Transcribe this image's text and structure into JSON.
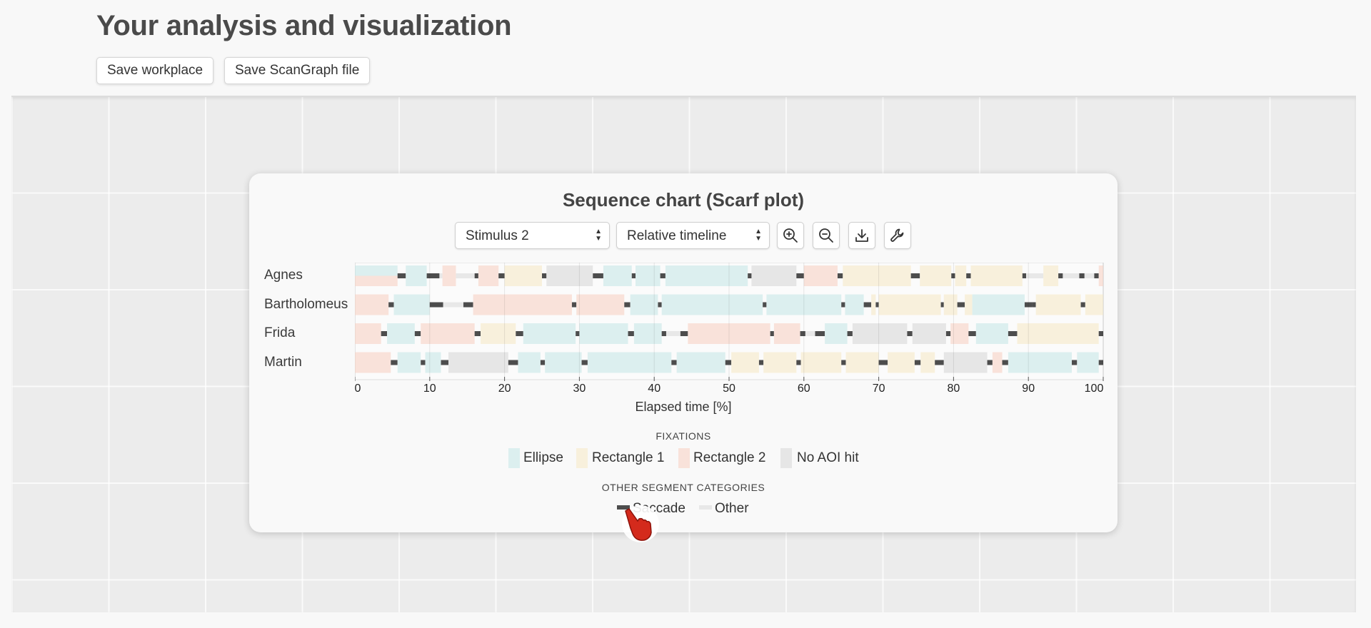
{
  "header": {
    "title": "Your analysis and visualization",
    "save_workplace_label": "Save workplace",
    "save_scangraph_label": "Save ScanGraph file"
  },
  "panel": {
    "title": "Sequence chart (Scarf plot)",
    "stimulus_select": "Stimulus 2",
    "timeline_select": "Relative timeline",
    "tools": [
      "zoom-in-icon",
      "zoom-out-icon",
      "download-icon",
      "wrench-icon"
    ]
  },
  "colors": {
    "ellipse": "#dcefef",
    "rectangle1": "#f8f0dc",
    "rectangle2": "#f9e2da",
    "noaoi": "#e6e6e6",
    "saccade": "#4d4d4d",
    "other": "#e8e8e8"
  },
  "chart_data": {
    "type": "scarf",
    "xlabel": "Elapsed time [%]",
    "xlim": [
      0,
      100
    ],
    "xticks": [
      0,
      10,
      20,
      30,
      40,
      50,
      60,
      70,
      80,
      90,
      100
    ],
    "participants": [
      {
        "name": "Agnes",
        "segments": [
          {
            "s": 0,
            "e": 5.7,
            "c": "ellipse",
            "half": "top"
          },
          {
            "s": 0,
            "e": 5.7,
            "c": "rectangle2",
            "half": "bottom"
          },
          {
            "s": 5.7,
            "e": 6.8,
            "c": "saccade"
          },
          {
            "s": 6.8,
            "e": 9.6,
            "c": "ellipse"
          },
          {
            "s": 9.6,
            "e": 11.3,
            "c": "saccade"
          },
          {
            "s": 11.3,
            "e": 11.7,
            "c": "other"
          },
          {
            "s": 11.7,
            "e": 13.5,
            "c": "rectangle2"
          },
          {
            "s": 13.5,
            "e": 16.0,
            "c": "other"
          },
          {
            "s": 16.0,
            "e": 16.5,
            "c": "saccade"
          },
          {
            "s": 16.5,
            "e": 19.2,
            "c": "rectangle2"
          },
          {
            "s": 19.2,
            "e": 20.0,
            "c": "saccade"
          },
          {
            "s": 20.0,
            "e": 25.0,
            "c": "rectangle1"
          },
          {
            "s": 25.0,
            "e": 25.6,
            "c": "saccade"
          },
          {
            "s": 25.6,
            "e": 31.8,
            "c": "noaoi"
          },
          {
            "s": 31.8,
            "e": 33.2,
            "c": "saccade"
          },
          {
            "s": 33.2,
            "e": 37.0,
            "c": "ellipse"
          },
          {
            "s": 37.0,
            "e": 37.5,
            "c": "saccade"
          },
          {
            "s": 37.5,
            "e": 40.8,
            "c": "ellipse"
          },
          {
            "s": 40.8,
            "e": 41.5,
            "c": "saccade"
          },
          {
            "s": 41.5,
            "e": 52.5,
            "c": "ellipse"
          },
          {
            "s": 52.5,
            "e": 53.0,
            "c": "saccade"
          },
          {
            "s": 53.0,
            "e": 59.0,
            "c": "noaoi"
          },
          {
            "s": 59.0,
            "e": 60.0,
            "c": "saccade"
          },
          {
            "s": 60.0,
            "e": 64.5,
            "c": "rectangle2"
          },
          {
            "s": 64.5,
            "e": 65.2,
            "c": "saccade"
          },
          {
            "s": 65.2,
            "e": 74.3,
            "c": "rectangle1"
          },
          {
            "s": 74.3,
            "e": 75.5,
            "c": "saccade"
          },
          {
            "s": 75.5,
            "e": 79.7,
            "c": "rectangle1"
          },
          {
            "s": 79.7,
            "e": 80.2,
            "c": "saccade"
          },
          {
            "s": 80.2,
            "e": 81.7,
            "c": "rectangle1"
          },
          {
            "s": 81.7,
            "e": 82.3,
            "c": "saccade"
          },
          {
            "s": 82.3,
            "e": 89.2,
            "c": "rectangle1"
          },
          {
            "s": 89.2,
            "e": 89.7,
            "c": "saccade"
          },
          {
            "s": 89.7,
            "e": 92.0,
            "c": "other"
          },
          {
            "s": 92.0,
            "e": 94.0,
            "c": "rectangle1"
          },
          {
            "s": 94.0,
            "e": 94.6,
            "c": "saccade"
          },
          {
            "s": 94.6,
            "e": 96.8,
            "c": "other"
          },
          {
            "s": 96.8,
            "e": 97.5,
            "c": "saccade"
          },
          {
            "s": 97.5,
            "e": 98.8,
            "c": "other"
          },
          {
            "s": 98.8,
            "e": 99.4,
            "c": "saccade"
          },
          {
            "s": 99.4,
            "e": 100.0,
            "c": "rectangle2"
          }
        ]
      },
      {
        "name": "Bartholomeus",
        "segments": [
          {
            "s": 0,
            "e": 4.5,
            "c": "rectangle2"
          },
          {
            "s": 4.5,
            "e": 5.2,
            "c": "saccade"
          },
          {
            "s": 5.2,
            "e": 10.0,
            "c": "ellipse"
          },
          {
            "s": 10.0,
            "e": 11.8,
            "c": "saccade"
          },
          {
            "s": 11.8,
            "e": 14.5,
            "c": "other"
          },
          {
            "s": 14.5,
            "e": 15.8,
            "c": "saccade"
          },
          {
            "s": 15.8,
            "e": 29.0,
            "c": "rectangle2"
          },
          {
            "s": 29.0,
            "e": 29.6,
            "c": "saccade"
          },
          {
            "s": 29.6,
            "e": 36.0,
            "c": "rectangle2"
          },
          {
            "s": 36.0,
            "e": 36.8,
            "c": "saccade"
          },
          {
            "s": 36.8,
            "e": 40.5,
            "c": "ellipse"
          },
          {
            "s": 40.5,
            "e": 41.0,
            "c": "saccade"
          },
          {
            "s": 41.0,
            "e": 54.5,
            "c": "ellipse"
          },
          {
            "s": 54.5,
            "e": 55.0,
            "c": "saccade"
          },
          {
            "s": 55.0,
            "e": 65.0,
            "c": "ellipse"
          },
          {
            "s": 65.0,
            "e": 65.5,
            "c": "saccade"
          },
          {
            "s": 65.5,
            "e": 68.0,
            "c": "ellipse"
          },
          {
            "s": 68.0,
            "e": 69.0,
            "c": "saccade"
          },
          {
            "s": 69.0,
            "e": 69.6,
            "c": "rectangle1"
          },
          {
            "s": 69.6,
            "e": 70.0,
            "c": "saccade"
          },
          {
            "s": 70.0,
            "e": 78.3,
            "c": "rectangle1"
          },
          {
            "s": 78.3,
            "e": 78.7,
            "c": "saccade"
          },
          {
            "s": 78.7,
            "e": 80.5,
            "c": "rectangle1"
          },
          {
            "s": 80.5,
            "e": 81.5,
            "c": "saccade"
          },
          {
            "s": 81.5,
            "e": 82.5,
            "c": "rectangle1"
          },
          {
            "s": 82.5,
            "e": 89.5,
            "c": "ellipse"
          },
          {
            "s": 89.5,
            "e": 90.5,
            "c": "saccade"
          },
          {
            "s": 90.5,
            "e": 91.0,
            "c": "saccade"
          },
          {
            "s": 91.0,
            "e": 97.0,
            "c": "rectangle1"
          },
          {
            "s": 97.0,
            "e": 97.6,
            "c": "saccade"
          },
          {
            "s": 97.6,
            "e": 100.0,
            "c": "rectangle1"
          }
        ]
      },
      {
        "name": "Frida",
        "segments": [
          {
            "s": 0,
            "e": 3.5,
            "c": "rectangle2"
          },
          {
            "s": 3.5,
            "e": 4.3,
            "c": "saccade"
          },
          {
            "s": 4.3,
            "e": 8.0,
            "c": "ellipse"
          },
          {
            "s": 8.0,
            "e": 8.8,
            "c": "saccade"
          },
          {
            "s": 8.8,
            "e": 16.0,
            "c": "rectangle2"
          },
          {
            "s": 16.0,
            "e": 16.8,
            "c": "saccade"
          },
          {
            "s": 16.8,
            "e": 21.5,
            "c": "rectangle1"
          },
          {
            "s": 21.5,
            "e": 22.5,
            "c": "saccade"
          },
          {
            "s": 22.5,
            "e": 29.5,
            "c": "ellipse"
          },
          {
            "s": 29.5,
            "e": 30.0,
            "c": "saccade"
          },
          {
            "s": 30.0,
            "e": 36.5,
            "c": "ellipse"
          },
          {
            "s": 36.5,
            "e": 37.3,
            "c": "saccade"
          },
          {
            "s": 37.3,
            "e": 41.0,
            "c": "ellipse"
          },
          {
            "s": 41.0,
            "e": 41.6,
            "c": "saccade"
          },
          {
            "s": 41.6,
            "e": 43.5,
            "c": "other"
          },
          {
            "s": 43.5,
            "e": 44.5,
            "c": "saccade"
          },
          {
            "s": 44.5,
            "e": 55.5,
            "c": "rectangle2"
          },
          {
            "s": 55.5,
            "e": 56.0,
            "c": "saccade"
          },
          {
            "s": 56.0,
            "e": 59.5,
            "c": "rectangle2"
          },
          {
            "s": 59.5,
            "e": 60.2,
            "c": "saccade"
          },
          {
            "s": 60.2,
            "e": 61.5,
            "c": "other"
          },
          {
            "s": 61.5,
            "e": 62.8,
            "c": "saccade"
          },
          {
            "s": 62.8,
            "e": 65.8,
            "c": "ellipse"
          },
          {
            "s": 65.8,
            "e": 66.5,
            "c": "saccade"
          },
          {
            "s": 66.5,
            "e": 73.8,
            "c": "noaoi"
          },
          {
            "s": 73.8,
            "e": 74.5,
            "c": "saccade"
          },
          {
            "s": 74.5,
            "e": 79.0,
            "c": "noaoi"
          },
          {
            "s": 79.0,
            "e": 79.6,
            "c": "saccade"
          },
          {
            "s": 79.6,
            "e": 82.0,
            "c": "rectangle2"
          },
          {
            "s": 82.0,
            "e": 83.0,
            "c": "saccade"
          },
          {
            "s": 83.0,
            "e": 87.3,
            "c": "ellipse"
          },
          {
            "s": 87.3,
            "e": 88.5,
            "c": "saccade"
          },
          {
            "s": 88.5,
            "e": 99.4,
            "c": "rectangle1"
          },
          {
            "s": 99.4,
            "e": 100.0,
            "c": "saccade"
          }
        ]
      },
      {
        "name": "Martin",
        "segments": [
          {
            "s": 0,
            "e": 4.8,
            "c": "rectangle2"
          },
          {
            "s": 4.8,
            "e": 5.7,
            "c": "saccade"
          },
          {
            "s": 5.7,
            "e": 8.8,
            "c": "ellipse"
          },
          {
            "s": 8.8,
            "e": 9.4,
            "c": "saccade"
          },
          {
            "s": 9.4,
            "e": 11.5,
            "c": "ellipse"
          },
          {
            "s": 11.5,
            "e": 12.5,
            "c": "saccade"
          },
          {
            "s": 12.5,
            "e": 20.5,
            "c": "noaoi"
          },
          {
            "s": 20.5,
            "e": 21.8,
            "c": "saccade"
          },
          {
            "s": 21.8,
            "e": 24.8,
            "c": "ellipse"
          },
          {
            "s": 24.8,
            "e": 25.4,
            "c": "saccade"
          },
          {
            "s": 25.4,
            "e": 30.3,
            "c": "ellipse"
          },
          {
            "s": 30.3,
            "e": 31.1,
            "c": "saccade"
          },
          {
            "s": 31.1,
            "e": 42.3,
            "c": "ellipse"
          },
          {
            "s": 42.3,
            "e": 43.0,
            "c": "saccade"
          },
          {
            "s": 43.0,
            "e": 49.5,
            "c": "ellipse"
          },
          {
            "s": 49.5,
            "e": 50.3,
            "c": "saccade"
          },
          {
            "s": 50.3,
            "e": 54.0,
            "c": "rectangle1"
          },
          {
            "s": 54.0,
            "e": 54.6,
            "c": "saccade"
          },
          {
            "s": 54.6,
            "e": 59.0,
            "c": "rectangle1"
          },
          {
            "s": 59.0,
            "e": 59.6,
            "c": "saccade"
          },
          {
            "s": 59.6,
            "e": 65.0,
            "c": "rectangle1"
          },
          {
            "s": 65.0,
            "e": 65.6,
            "c": "saccade"
          },
          {
            "s": 65.6,
            "e": 70.0,
            "c": "rectangle1"
          },
          {
            "s": 70.0,
            "e": 71.2,
            "c": "saccade"
          },
          {
            "s": 71.2,
            "e": 74.8,
            "c": "rectangle1"
          },
          {
            "s": 74.8,
            "e": 75.6,
            "c": "saccade"
          },
          {
            "s": 75.6,
            "e": 77.5,
            "c": "rectangle1"
          },
          {
            "s": 77.5,
            "e": 78.7,
            "c": "saccade"
          },
          {
            "s": 78.7,
            "e": 84.5,
            "c": "noaoi"
          },
          {
            "s": 84.5,
            "e": 85.2,
            "c": "saccade"
          },
          {
            "s": 85.2,
            "e": 86.5,
            "c": "rectangle2"
          },
          {
            "s": 86.5,
            "e": 87.3,
            "c": "saccade"
          },
          {
            "s": 87.3,
            "e": 95.8,
            "c": "ellipse"
          },
          {
            "s": 95.8,
            "e": 96.5,
            "c": "saccade"
          },
          {
            "s": 96.5,
            "e": 99.4,
            "c": "ellipse"
          },
          {
            "s": 99.4,
            "e": 100.0,
            "c": "saccade"
          }
        ]
      }
    ]
  },
  "legend": {
    "fixations_heading": "FIXATIONS",
    "fixations": [
      {
        "label": "Ellipse",
        "color_key": "ellipse"
      },
      {
        "label": "Rectangle 1",
        "color_key": "rectangle1"
      },
      {
        "label": "Rectangle 2",
        "color_key": "rectangle2"
      },
      {
        "label": "No AOI hit",
        "color_key": "noaoi"
      }
    ],
    "other_heading": "OTHER SEGMENT CATEGORIES",
    "other": [
      {
        "label": "Saccade",
        "color_key": "saccade"
      },
      {
        "label": "Other",
        "color_key": "other"
      }
    ]
  }
}
